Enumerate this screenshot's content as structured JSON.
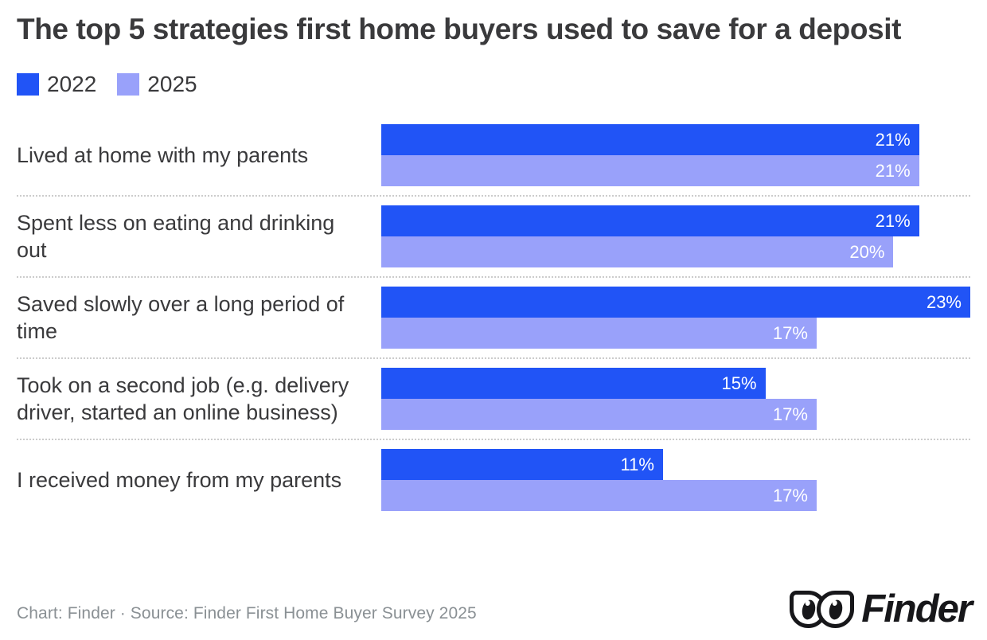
{
  "title": "The top 5 strategies first home buyers used to save for a deposit",
  "legend": {
    "items": [
      {
        "label": "2022",
        "color": "#2154f6"
      },
      {
        "label": "2025",
        "color": "#99a1fa"
      }
    ]
  },
  "chart_data": {
    "type": "bar",
    "orientation": "horizontal",
    "title": "The top 5 strategies first home buyers used to save for a deposit",
    "categories": [
      "Lived at home with my parents",
      "Spent less on eating and drinking out",
      "Saved slowly over a long period of time",
      "Took on a second job (e.g. delivery driver, started an online business)",
      "I received money from my parents"
    ],
    "series": [
      {
        "name": "2022",
        "color": "#2154f6",
        "values": [
          21,
          21,
          23,
          15,
          11
        ],
        "labels": [
          "21%",
          "21%",
          "23%",
          "15%",
          "11%"
        ]
      },
      {
        "name": "2025",
        "color": "#99a1fa",
        "values": [
          21,
          20,
          17,
          17,
          17
        ],
        "labels": [
          "21%",
          "20%",
          "17%",
          "17%",
          "17%"
        ]
      }
    ],
    "value_suffix": "%",
    "xmax": 23,
    "legend_position": "top-left",
    "grid": false,
    "value_labels_inside_bar_end": true
  },
  "footer": {
    "credit": "Chart: Finder · Source: Finder First Home Buyer Survey 2025",
    "logo_text": "Finder"
  },
  "colors": {
    "title_text": "#3a3a3c",
    "category_text": "#3a3a3c",
    "bar_value_text": "#ffffff",
    "credit_text": "#8a9094",
    "separator": "#cccccc",
    "logo": "#17171a",
    "background": "#ffffff"
  }
}
